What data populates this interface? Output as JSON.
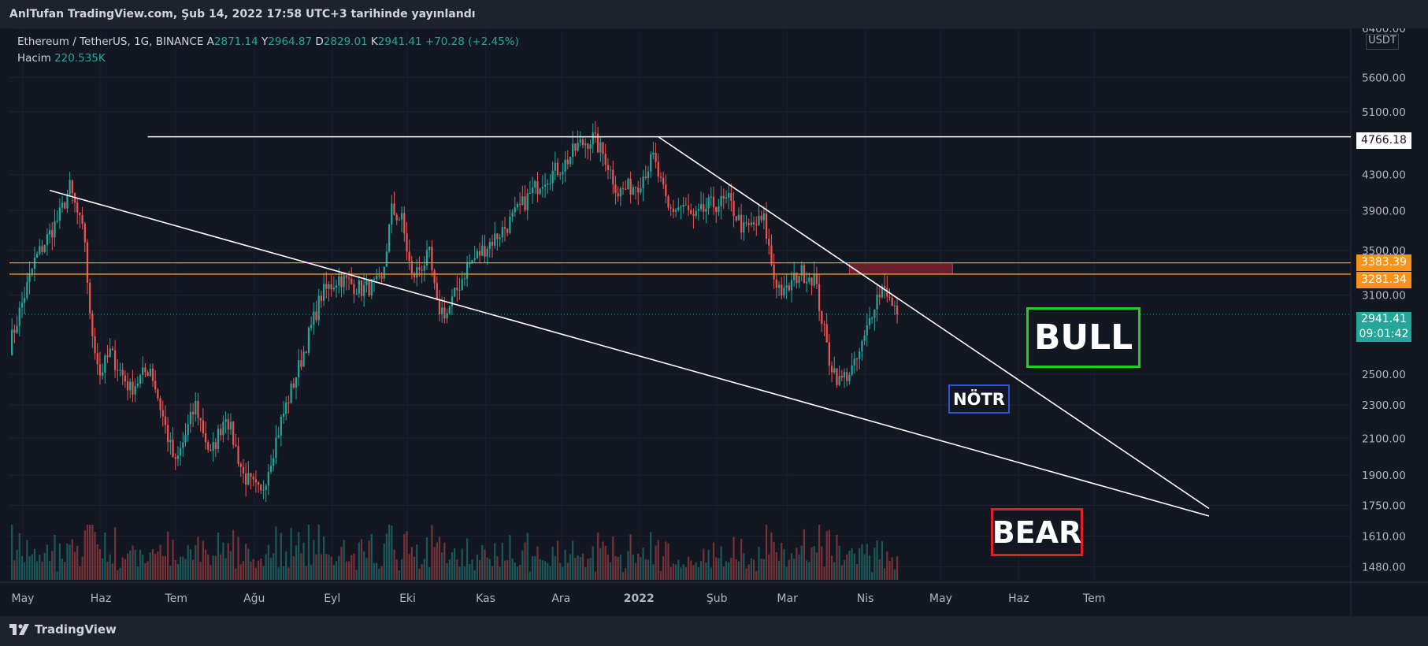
{
  "header": {
    "publish_line": "AnlTufan TradingView.com, Şub 14, 2022 17:58 UTC+3 tarihinde yayınlandı"
  },
  "legend": {
    "symbol": "Ethereum / TetherUS, 1G, BINANCE",
    "open_label": "A",
    "open": "2871.14",
    "high_label": "Y",
    "high": "2964.87",
    "low_label": "D",
    "low": "2829.01",
    "close_label": "K",
    "close": "2941.41",
    "change": "+70.28 (+2.45%)",
    "volume_label": "Hacim",
    "volume": "220.535K"
  },
  "footer": {
    "brand": "TradingView"
  },
  "price_tags": {
    "resistance_top": "3383.39",
    "resistance_bottom": "3281.34",
    "ath_line": "4766.18",
    "last_price": "2941.41",
    "countdown": "09:01:42",
    "currency": "USDT"
  },
  "annotations": {
    "bull": "BULL",
    "bear": "BEAR",
    "neutral": "NÖTR"
  },
  "colors": {
    "background": "#131722",
    "up": "#26a69a",
    "down": "#ef5350",
    "level": "#f7931a",
    "bull_box": "#1ed11e",
    "bear_box": "#e01f2a",
    "neutral_box": "#2f53d6"
  },
  "chart_data": {
    "type": "candlestick",
    "scale": "log",
    "ylim": [
      1420,
      6400
    ],
    "yticks": [
      "6400.00",
      "5600.00",
      "5100.00",
      "4300.00",
      "3900.00",
      "3500.00",
      "3100.00",
      "2500.00",
      "2300.00",
      "2100.00",
      "1900.00",
      "1750.00",
      "1610.00",
      "1480.00"
    ],
    "x_tick_labels": [
      "May",
      "Haz",
      "Tem",
      "Ağu",
      "Eyl",
      "Eki",
      "Kas",
      "Ara",
      "2022",
      "Şub",
      "Mar",
      "Nis",
      "May",
      "Haz",
      "Tem"
    ],
    "price_path_anchors": [
      {
        "day": 0,
        "price": 2700
      },
      {
        "day": 10,
        "price": 3400
      },
      {
        "day": 20,
        "price": 3850
      },
      {
        "day": 24,
        "price": 4150
      },
      {
        "day": 30,
        "price": 3600
      },
      {
        "day": 32,
        "price": 2900
      },
      {
        "day": 36,
        "price": 2500
      },
      {
        "day": 40,
        "price": 2650
      },
      {
        "day": 48,
        "price": 2400
      },
      {
        "day": 56,
        "price": 2550
      },
      {
        "day": 64,
        "price": 2050
      },
      {
        "day": 66,
        "price": 1950
      },
      {
        "day": 74,
        "price": 2300
      },
      {
        "day": 80,
        "price": 2000
      },
      {
        "day": 86,
        "price": 2250
      },
      {
        "day": 93,
        "price": 1900
      },
      {
        "day": 100,
        "price": 1800
      },
      {
        "day": 108,
        "price": 2200
      },
      {
        "day": 116,
        "price": 2600
      },
      {
        "day": 124,
        "price": 3100
      },
      {
        "day": 131,
        "price": 3250
      },
      {
        "day": 140,
        "price": 3150
      },
      {
        "day": 148,
        "price": 3200
      },
      {
        "day": 152,
        "price": 3900
      },
      {
        "day": 156,
        "price": 3800
      },
      {
        "day": 160,
        "price": 3250
      },
      {
        "day": 167,
        "price": 3450
      },
      {
        "day": 170,
        "price": 3000
      },
      {
        "day": 174,
        "price": 2950
      },
      {
        "day": 182,
        "price": 3350
      },
      {
        "day": 190,
        "price": 3550
      },
      {
        "day": 198,
        "price": 3750
      },
      {
        "day": 205,
        "price": 4000
      },
      {
        "day": 212,
        "price": 4250
      },
      {
        "day": 220,
        "price": 4400
      },
      {
        "day": 226,
        "price": 4650
      },
      {
        "day": 232,
        "price": 4750
      },
      {
        "day": 237,
        "price": 4500
      },
      {
        "day": 242,
        "price": 4100
      },
      {
        "day": 250,
        "price": 4200
      },
      {
        "day": 256,
        "price": 4500
      },
      {
        "day": 262,
        "price": 3900
      },
      {
        "day": 268,
        "price": 3950
      },
      {
        "day": 272,
        "price": 3800
      },
      {
        "day": 278,
        "price": 3950
      },
      {
        "day": 286,
        "price": 4000
      },
      {
        "day": 292,
        "price": 3700
      },
      {
        "day": 300,
        "price": 3800
      },
      {
        "day": 304,
        "price": 3250
      },
      {
        "day": 308,
        "price": 3100
      },
      {
        "day": 314,
        "price": 3300
      },
      {
        "day": 320,
        "price": 3250
      },
      {
        "day": 326,
        "price": 2600
      },
      {
        "day": 330,
        "price": 2450
      },
      {
        "day": 336,
        "price": 2550
      },
      {
        "day": 340,
        "price": 2750
      },
      {
        "day": 344,
        "price": 3050
      },
      {
        "day": 348,
        "price": 3200
      },
      {
        "day": 351,
        "price": 2990
      },
      {
        "day": 353,
        "price": 2941
      }
    ],
    "horizontal_levels": [
      3383.39,
      3281.34,
      4766.18
    ],
    "resistance_zone": {
      "from_day": 334,
      "to_day": 375,
      "low": 3281.34,
      "high": 3383.39
    },
    "trendlines": [
      {
        "name": "descending-resistance",
        "from": {
          "day": 258,
          "price": 4766
        },
        "to": {
          "day": 477,
          "price": 1735
        }
      },
      {
        "name": "descending-support",
        "from": {
          "day": 16,
          "price": 4120
        },
        "to": {
          "day": 477,
          "price": 1700
        }
      }
    ]
  }
}
